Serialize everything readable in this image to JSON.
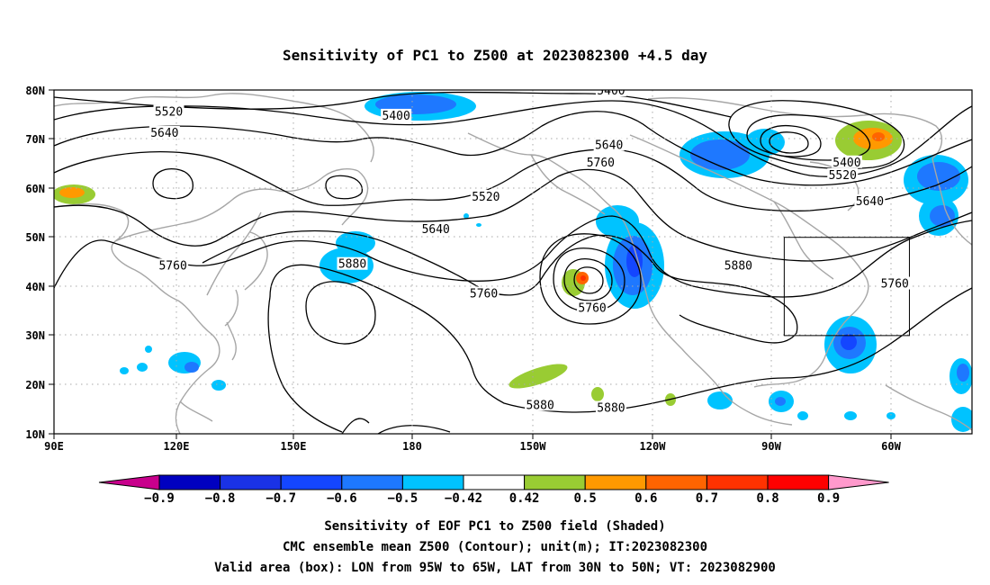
{
  "title": "Sensitivity of PC1 to Z500 at 2023082300 +4.5 day",
  "map": {
    "lon_labels": [
      "90E",
      "120E",
      "150E",
      "180",
      "150W",
      "120W",
      "90W",
      "60W"
    ],
    "lat_labels": [
      "80N",
      "70N",
      "60N",
      "50N",
      "40N",
      "30N",
      "20N",
      "10N"
    ],
    "valid_box": {
      "lon": [
        -95,
        -65
      ],
      "lat": [
        30,
        50
      ]
    },
    "contour_labels": [
      {
        "text": "5400",
        "lon": -136.5,
        "lat": 79.8
      },
      {
        "text": "5520",
        "lon": 117.5,
        "lat": 75.5
      },
      {
        "text": "5400",
        "lon": 172,
        "lat": 74.7
      },
      {
        "text": "5640",
        "lon": 116.5,
        "lat": 71.2
      },
      {
        "text": "5640",
        "lon": -137,
        "lat": 68.7
      },
      {
        "text": "5760",
        "lon": -139,
        "lat": 65.2
      },
      {
        "text": "5400",
        "lon": -80,
        "lat": 65.2
      },
      {
        "text": "5520",
        "lon": -81,
        "lat": 62.6
      },
      {
        "text": "5520",
        "lon": -166.5,
        "lat": 58.2
      },
      {
        "text": "5640",
        "lon": -74.5,
        "lat": 57.3
      },
      {
        "text": "5640",
        "lon": -178.5,
        "lat": 51.6
      },
      {
        "text": "5880",
        "lon": 161.5,
        "lat": 44.5
      },
      {
        "text": "5760",
        "lon": 118.5,
        "lat": 44.2
      },
      {
        "text": "5880",
        "lon": -106,
        "lat": 44.2
      },
      {
        "text": "5760",
        "lon": -68.5,
        "lat": 40.5
      },
      {
        "text": "5760",
        "lon": -167,
        "lat": 38.5
      },
      {
        "text": "5760",
        "lon": -141,
        "lat": 35.6
      },
      {
        "text": "5880",
        "lon": -153.5,
        "lat": 15.8
      },
      {
        "text": "5880",
        "lon": -136.5,
        "lat": 15.2
      }
    ]
  },
  "colorbar": {
    "labels": [
      "−0.9",
      "−0.8",
      "−0.7",
      "−0.6",
      "−0.5",
      "−0.42",
      "0.42",
      "0.5",
      "0.6",
      "0.7",
      "0.8",
      "0.9"
    ],
    "colors": [
      "#c8008c",
      "#0000c0",
      "#1a32e6",
      "#1446ff",
      "#1e78ff",
      "#00c3ff",
      "#ffffff",
      "#99cc33",
      "#ff9900",
      "#ff6400",
      "#ff3200",
      "#ff0000",
      "#ff99cc"
    ]
  },
  "footer": [
    "Sensitivity of EOF PC1 to Z500 field (Shaded)",
    "CMC ensemble mean Z500 (Contour); unit(m); IT:2023082300",
    "Valid area (box): LON from 95W to 65W, LAT from 30N to 50N; VT: 2023082900"
  ]
}
